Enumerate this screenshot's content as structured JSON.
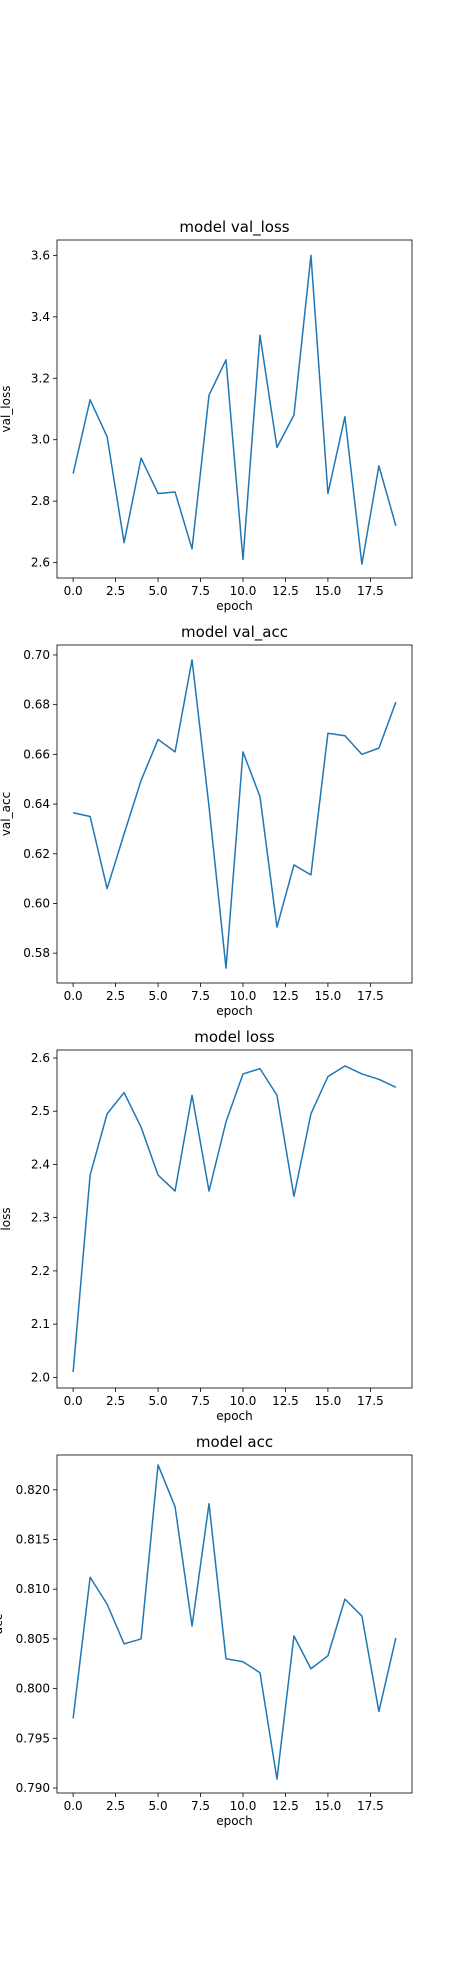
{
  "chart_data": [
    {
      "type": "line",
      "title": "model val_loss",
      "xlabel": "epoch",
      "ylabel": "val_loss",
      "x": [
        0,
        1,
        2,
        3,
        4,
        5,
        6,
        7,
        8,
        9,
        10,
        11,
        12,
        13,
        14,
        15,
        16,
        17,
        18,
        19
      ],
      "series": [
        {
          "values": [
            2.89,
            3.13,
            3.01,
            2.665,
            2.94,
            2.825,
            2.83,
            2.645,
            3.145,
            3.26,
            2.61,
            3.34,
            2.975,
            3.08,
            3.6,
            2.825,
            3.075,
            2.595,
            2.915,
            2.72
          ]
        }
      ],
      "xlim": [
        -0.95,
        19.95
      ],
      "ylim": [
        2.55,
        3.65
      ],
      "xticks": [
        0,
        2.5,
        5,
        7.5,
        10,
        12.5,
        15,
        17.5
      ],
      "xtick_labels": [
        "0.0",
        "2.5",
        "5.0",
        "7.5",
        "10.0",
        "12.5",
        "15.0",
        "17.5"
      ],
      "yticks": [
        2.6,
        2.8,
        3.0,
        3.2,
        3.4,
        3.6
      ],
      "ytick_labels": [
        "2.6",
        "2.8",
        "3.0",
        "3.2",
        "3.4",
        "3.6"
      ],
      "line_color": "#1f77b4",
      "grid": false
    },
    {
      "type": "line",
      "title": "model val_acc",
      "xlabel": "epoch",
      "ylabel": "val_acc",
      "x": [
        0,
        1,
        2,
        3,
        4,
        5,
        6,
        7,
        8,
        9,
        10,
        11,
        12,
        13,
        14,
        15,
        16,
        17,
        18,
        19
      ],
      "series": [
        {
          "values": [
            0.6365,
            0.635,
            0.606,
            0.628,
            0.6495,
            0.666,
            0.661,
            0.698,
            0.639,
            0.574,
            0.661,
            0.643,
            0.5905,
            0.6155,
            0.6115,
            0.6685,
            0.6675,
            0.66,
            0.6625,
            0.681
          ]
        }
      ],
      "xlim": [
        -0.95,
        19.95
      ],
      "ylim": [
        0.568,
        0.704
      ],
      "xticks": [
        0,
        2.5,
        5,
        7.5,
        10,
        12.5,
        15,
        17.5
      ],
      "xtick_labels": [
        "0.0",
        "2.5",
        "5.0",
        "7.5",
        "10.0",
        "12.5",
        "15.0",
        "17.5"
      ],
      "yticks": [
        0.58,
        0.6,
        0.62,
        0.64,
        0.66,
        0.68,
        0.7
      ],
      "ytick_labels": [
        "0.58",
        "0.60",
        "0.62",
        "0.64",
        "0.66",
        "0.68",
        "0.70"
      ],
      "line_color": "#1f77b4",
      "grid": false
    },
    {
      "type": "line",
      "title": "model loss",
      "xlabel": "epoch",
      "ylabel": "loss",
      "x": [
        0,
        1,
        2,
        3,
        4,
        5,
        6,
        7,
        8,
        9,
        10,
        11,
        12,
        13,
        14,
        15,
        16,
        17,
        18,
        19
      ],
      "series": [
        {
          "values": [
            2.01,
            2.38,
            2.495,
            2.535,
            2.47,
            2.38,
            2.35,
            2.53,
            2.35,
            2.48,
            2.57,
            2.58,
            2.53,
            2.34,
            2.495,
            2.565,
            2.585,
            2.57,
            2.56,
            2.545
          ]
        }
      ],
      "xlim": [
        -0.95,
        19.95
      ],
      "ylim": [
        1.98,
        2.615
      ],
      "xticks": [
        0,
        2.5,
        5,
        7.5,
        10,
        12.5,
        15,
        17.5
      ],
      "xtick_labels": [
        "0.0",
        "2.5",
        "5.0",
        "7.5",
        "10.0",
        "12.5",
        "15.0",
        "17.5"
      ],
      "yticks": [
        2.0,
        2.1,
        2.2,
        2.3,
        2.4,
        2.5,
        2.6
      ],
      "ytick_labels": [
        "2.0",
        "2.1",
        "2.2",
        "2.3",
        "2.4",
        "2.5",
        "2.6"
      ],
      "line_color": "#1f77b4",
      "grid": false
    },
    {
      "type": "line",
      "title": "model acc",
      "xlabel": "epoch",
      "ylabel": "acc",
      "x": [
        0,
        1,
        2,
        3,
        4,
        5,
        6,
        7,
        8,
        9,
        10,
        11,
        12,
        13,
        14,
        15,
        16,
        17,
        18,
        19
      ],
      "series": [
        {
          "values": [
            0.797,
            0.8112,
            0.8085,
            0.8045,
            0.805,
            0.8225,
            0.8183,
            0.8063,
            0.8186,
            0.803,
            0.8027,
            0.8016,
            0.7909,
            0.8053,
            0.802,
            0.8033,
            0.809,
            0.8073,
            0.7977,
            0.8051
          ]
        }
      ],
      "xlim": [
        -0.95,
        19.95
      ],
      "ylim": [
        0.7895,
        0.8235
      ],
      "xticks": [
        0,
        2.5,
        5,
        7.5,
        10,
        12.5,
        15,
        17.5
      ],
      "xtick_labels": [
        "0.0",
        "2.5",
        "5.0",
        "7.5",
        "10.0",
        "12.5",
        "15.0",
        "17.5"
      ],
      "yticks": [
        0.79,
        0.795,
        0.8,
        0.805,
        0.81,
        0.815,
        0.82
      ],
      "ytick_labels": [
        "0.790",
        "0.795",
        "0.800",
        "0.805",
        "0.810",
        "0.815",
        "0.820"
      ],
      "line_color": "#1f77b4",
      "grid": false
    }
  ]
}
